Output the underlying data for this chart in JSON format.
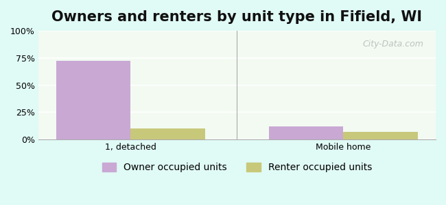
{
  "title": "Owners and renters by unit type in Fifield, WI",
  "categories": [
    "1, detached",
    "Mobile home"
  ],
  "owner_values": [
    72,
    12
  ],
  "renter_values": [
    10,
    7
  ],
  "owner_color": "#c9a8d4",
  "renter_color": "#c8c87a",
  "background_color": "#e0faf5",
  "plot_bg_gradient_top": "#f5fff5",
  "plot_bg_gradient_bottom": "#e8f8e8",
  "ylim": [
    0,
    100
  ],
  "yticks": [
    0,
    25,
    50,
    75,
    100
  ],
  "yticklabels": [
    "0%",
    "25%",
    "50%",
    "75%",
    "100%"
  ],
  "owner_label": "Owner occupied units",
  "renter_label": "Renter occupied units",
  "watermark": "City-Data.com",
  "bar_width": 0.35,
  "title_fontsize": 15,
  "tick_fontsize": 9,
  "legend_fontsize": 10
}
